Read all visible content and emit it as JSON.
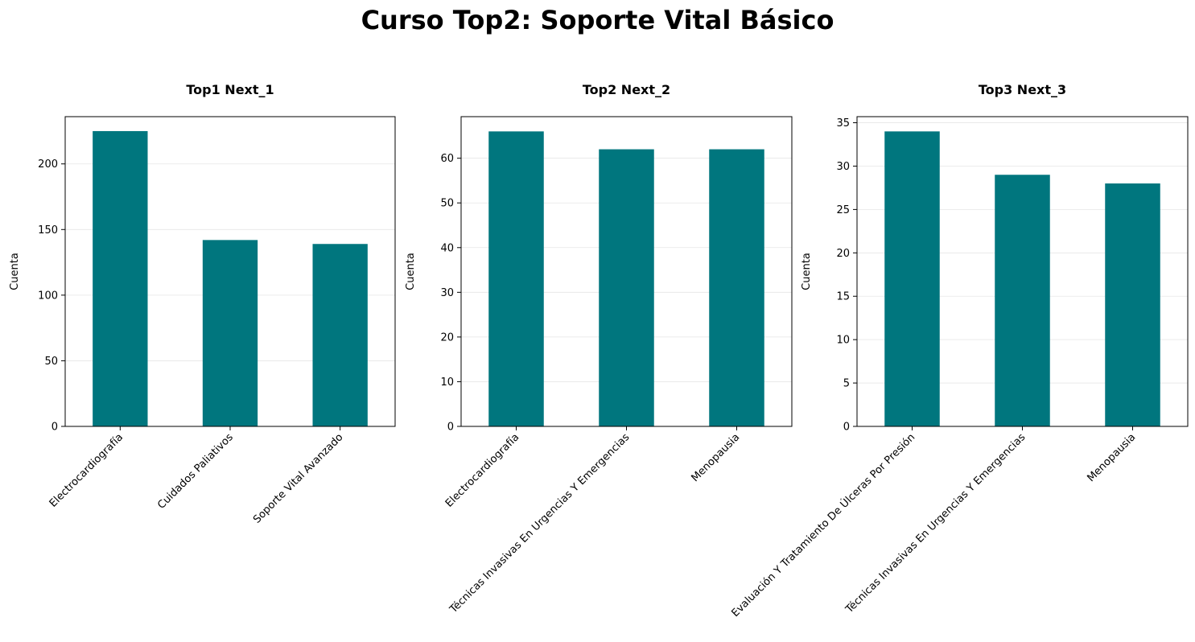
{
  "figure": {
    "title": "Curso Top2: Soporte Vital Básico"
  },
  "colors": {
    "bar": "#00767E",
    "grid": "#E6E6E6",
    "axis": "#000000"
  },
  "chart_data": [
    {
      "type": "bar",
      "title": "Top1 Next_1",
      "ylabel": "Cuenta",
      "xlabel": "",
      "categories": [
        "Electrocardiografía",
        "Cuidados Paliativos",
        "Soporte Vital Avanzado"
      ],
      "values": [
        225,
        142,
        139
      ],
      "ylim": [
        0,
        236
      ],
      "yticks": [
        0,
        50,
        100,
        150,
        200
      ],
      "grid": "y"
    },
    {
      "type": "bar",
      "title": "Top2 Next_2",
      "ylabel": "Cuenta",
      "xlabel": "",
      "categories": [
        "Electrocardiografía",
        "Técnicas Invasivas En Urgencias Y Emergencias",
        "Menopausia"
      ],
      "values": [
        66,
        62,
        62
      ],
      "ylim": [
        0,
        69.3
      ],
      "yticks": [
        0,
        10,
        20,
        30,
        40,
        50,
        60
      ],
      "grid": "y"
    },
    {
      "type": "bar",
      "title": "Top3 Next_3",
      "ylabel": "Cuenta",
      "xlabel": "",
      "categories": [
        "Evaluación Y Tratamiento De Úlceras Por Presión",
        "Técnicas Invasivas En Urgencias Y Emergencias",
        "Menopausia"
      ],
      "values": [
        34,
        29,
        28
      ],
      "ylim": [
        0,
        35.7
      ],
      "yticks": [
        0,
        5,
        10,
        15,
        20,
        25,
        30,
        35
      ],
      "grid": "y"
    }
  ]
}
